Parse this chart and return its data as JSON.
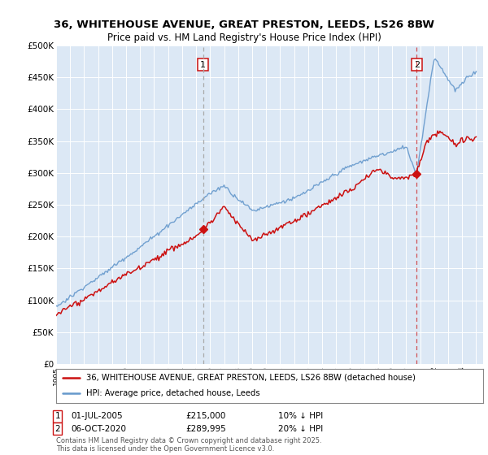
{
  "title1": "36, WHITEHOUSE AVENUE, GREAT PRESTON, LEEDS, LS26 8BW",
  "title2": "Price paid vs. HM Land Registry's House Price Index (HPI)",
  "ylim": [
    0,
    500000
  ],
  "yticks": [
    0,
    50000,
    100000,
    150000,
    200000,
    250000,
    300000,
    350000,
    400000,
    450000,
    500000
  ],
  "ytick_labels": [
    "£0",
    "£50K",
    "£100K",
    "£150K",
    "£200K",
    "£250K",
    "£300K",
    "£350K",
    "£400K",
    "£450K",
    "£500K"
  ],
  "plot_bg_color": "#dce8f5",
  "hpi_color": "#6699cc",
  "price_color": "#cc1111",
  "sale1_year": 2005.5,
  "sale2_year": 2020.75,
  "sale1": {
    "date": "01-JUL-2005",
    "price": "215,000",
    "note": "10% ↓ HPI"
  },
  "sale2": {
    "date": "06-OCT-2020",
    "price": "289,995",
    "note": "20% ↓ HPI"
  },
  "legend1": "36, WHITEHOUSE AVENUE, GREAT PRESTON, LEEDS, LS26 8BW (detached house)",
  "legend2": "HPI: Average price, detached house, Leeds",
  "footer": "Contains HM Land Registry data © Crown copyright and database right 2025.\nThis data is licensed under the Open Government Licence v3.0.",
  "xlim_start": 1995,
  "xlim_end": 2025.5
}
